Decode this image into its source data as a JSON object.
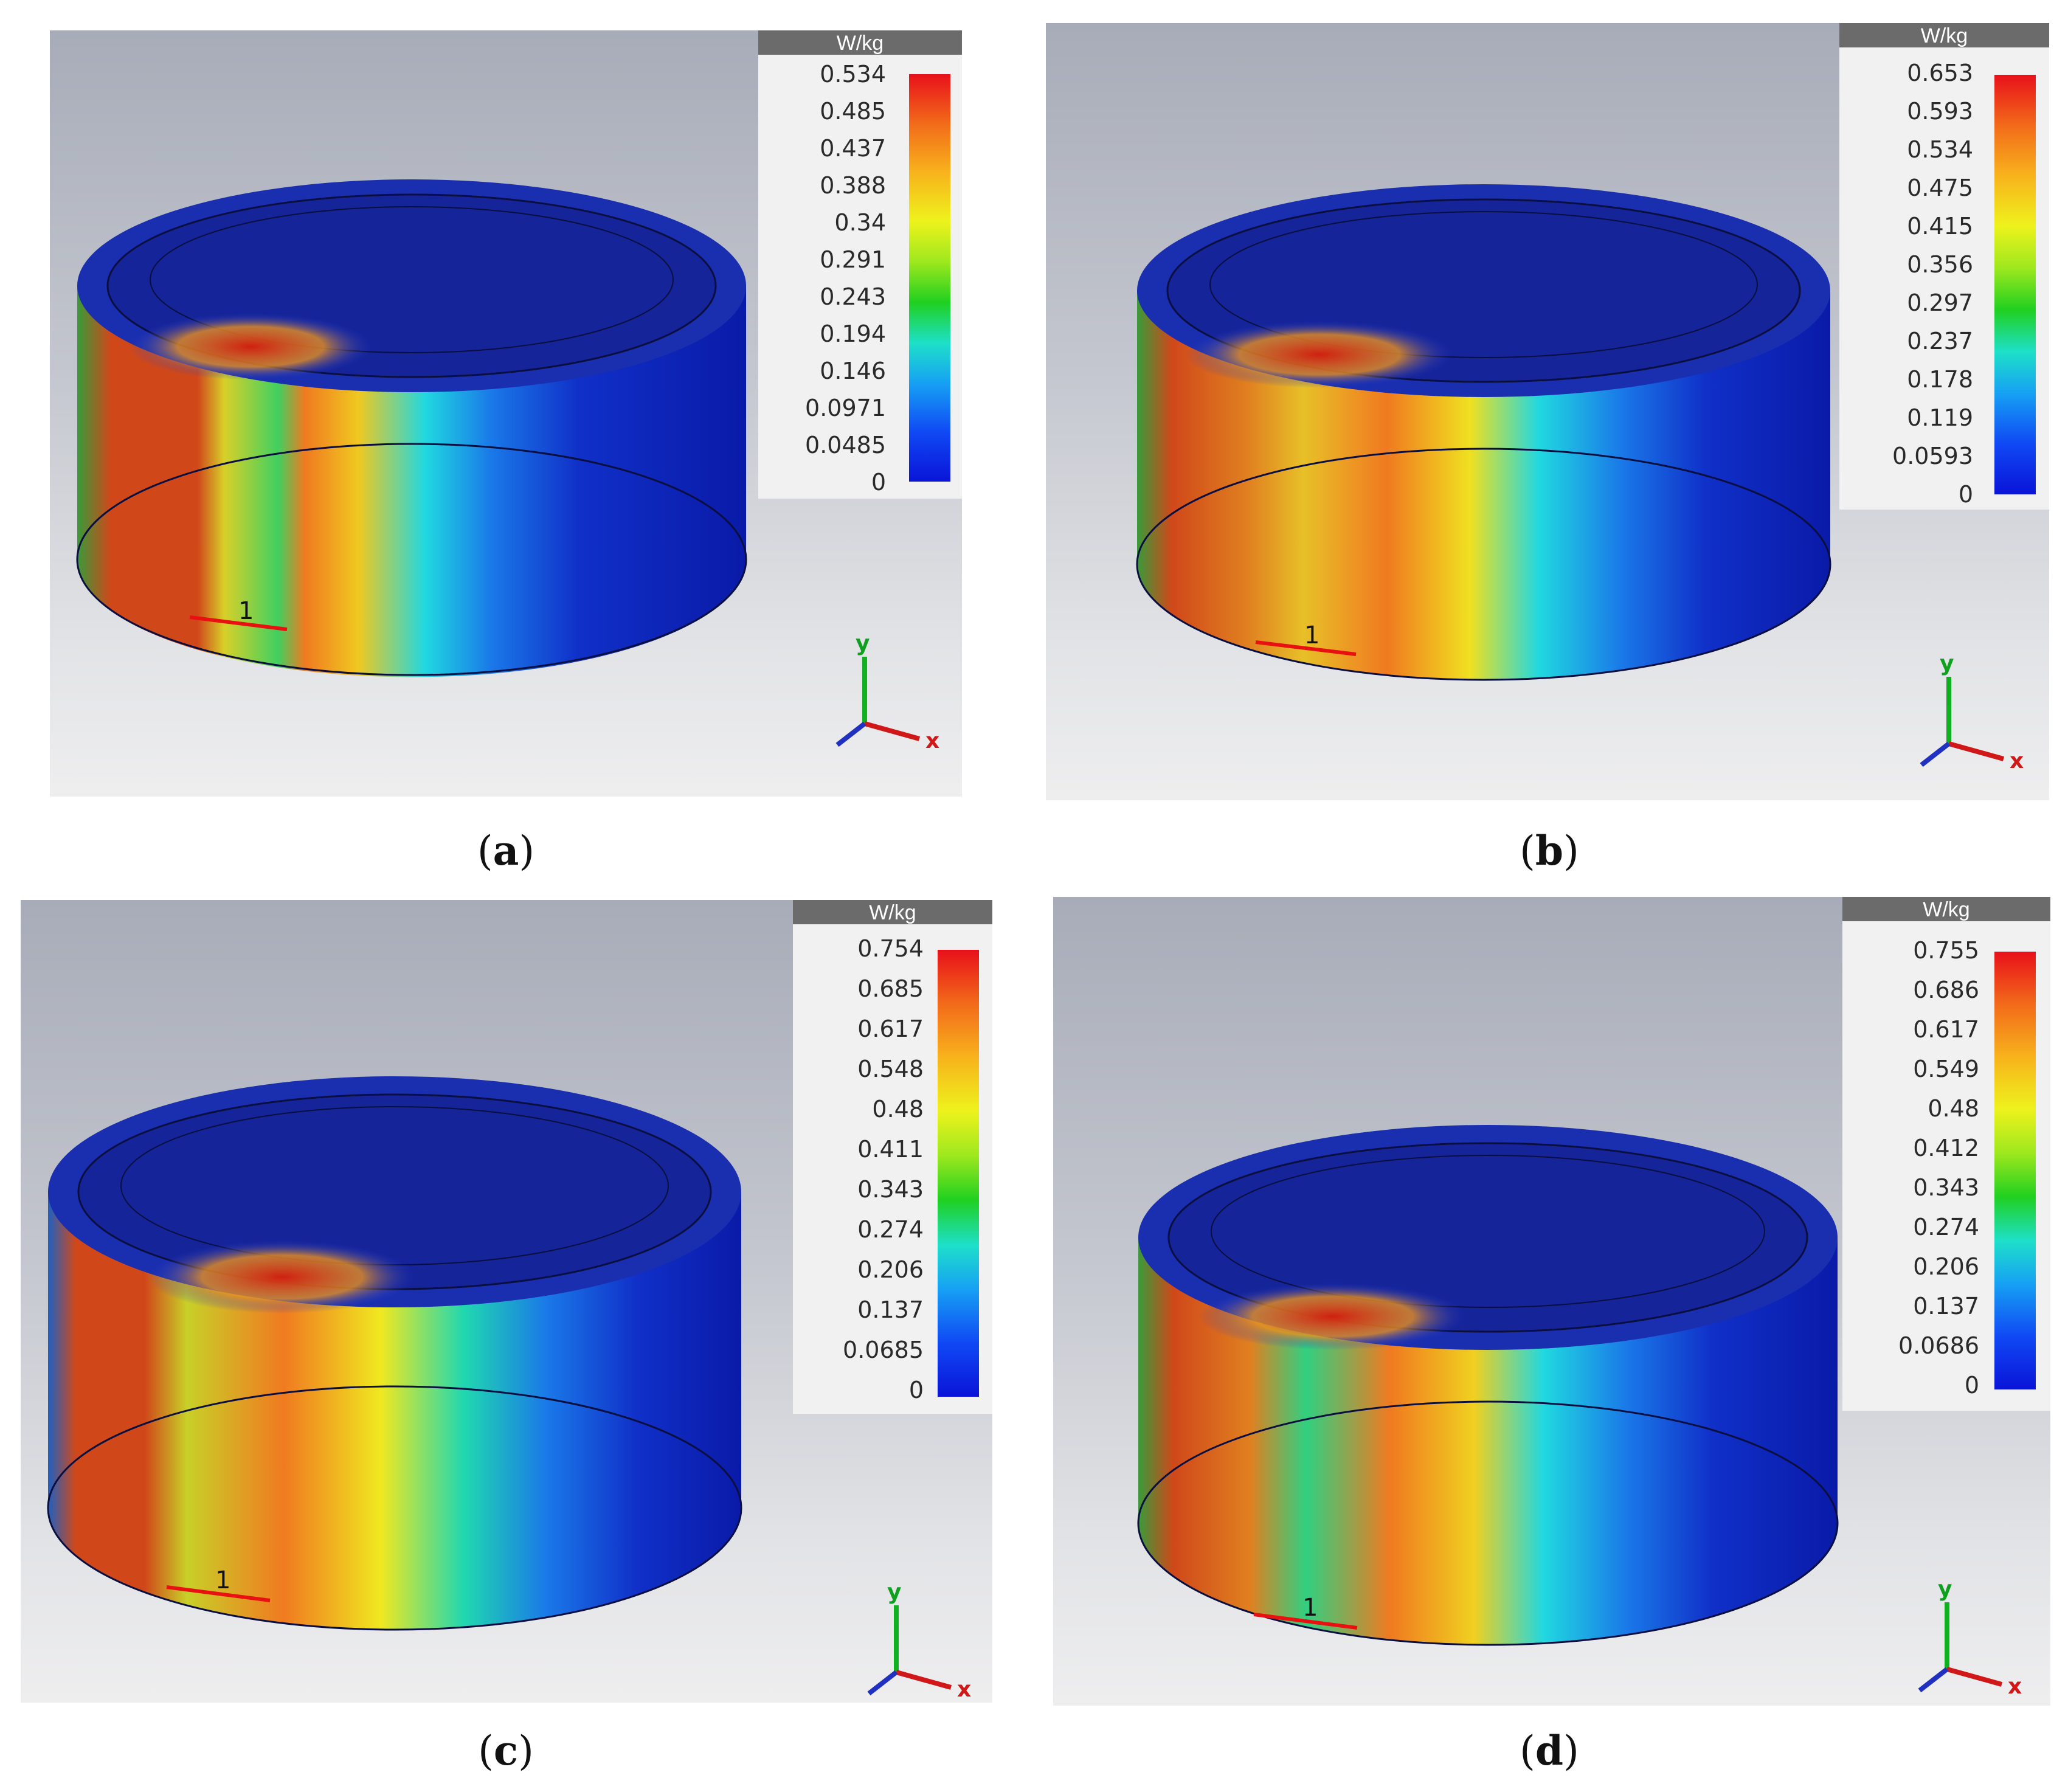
{
  "panels": [
    {
      "id": "a",
      "caption_letter": "a",
      "unit": "W/kg",
      "ticks": [
        "0.534",
        "0.485",
        "0.437",
        "0.388",
        "0.34",
        "0.291",
        "0.243",
        "0.194",
        "0.146",
        "0.0971",
        "0.0485",
        "0"
      ],
      "port_label": "1",
      "axis_y": "y",
      "axis_x": "x"
    },
    {
      "id": "b",
      "caption_letter": "b",
      "unit": "W/kg",
      "ticks": [
        "0.653",
        "0.593",
        "0.534",
        "0.475",
        "0.415",
        "0.356",
        "0.297",
        "0.237",
        "0.178",
        "0.119",
        "0.0593",
        "0"
      ],
      "port_label": "1",
      "axis_y": "y",
      "axis_x": "x"
    },
    {
      "id": "c",
      "caption_letter": "c",
      "unit": "W/kg",
      "ticks": [
        "0.754",
        "0.685",
        "0.617",
        "0.548",
        "0.48",
        "0.411",
        "0.343",
        "0.274",
        "0.206",
        "0.137",
        "0.0685",
        "0"
      ],
      "port_label": "1",
      "axis_y": "y",
      "axis_x": "x"
    },
    {
      "id": "d",
      "caption_letter": "d",
      "unit": "W/kg",
      "ticks": [
        "0.755",
        "0.686",
        "0.617",
        "0.549",
        "0.48",
        "0.412",
        "0.343",
        "0.274",
        "0.206",
        "0.137",
        "0.0686",
        "0"
      ],
      "port_label": "1",
      "axis_y": "y",
      "axis_x": "x"
    }
  ],
  "colors": {
    "high": "#e8101a",
    "mid": "#eef21c",
    "low": "#0a14d8",
    "legend_header": "#6b6b6b"
  }
}
